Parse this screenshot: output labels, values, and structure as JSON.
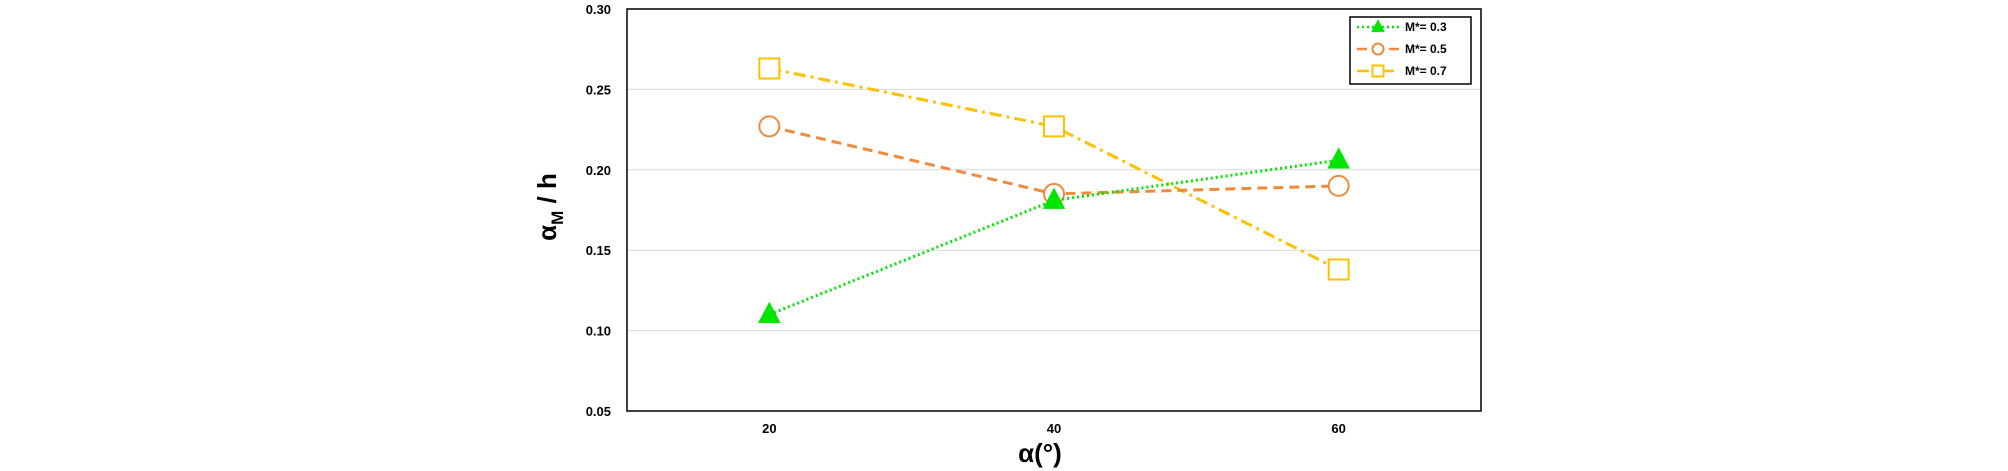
{
  "chart_data": {
    "type": "line",
    "title": "",
    "xlabel": "α(°)",
    "ylabel": {
      "main": "α",
      "subscript": "M",
      "suffix": " / h"
    },
    "x": [
      20,
      40,
      60
    ],
    "x_ticks": [
      "20",
      "40",
      "60"
    ],
    "xlim": [
      10,
      70
    ],
    "ylim": [
      0.05,
      0.3
    ],
    "y_ticks": [
      "0.05",
      "0.10",
      "0.15",
      "0.20",
      "0.25",
      "0.30"
    ],
    "grid": "horizontal",
    "legend_position": "top-right",
    "series": [
      {
        "name": "M*= 0.3",
        "values": [
          0.11,
          0.181,
          0.206
        ],
        "color": "#00e600",
        "marker": "triangle",
        "line_style": "dotted"
      },
      {
        "name": "M*= 0.5",
        "values": [
          0.227,
          0.185,
          0.19
        ],
        "color": "#f08a3c",
        "marker": "circle",
        "line_style": "dashed"
      },
      {
        "name": "M*= 0.7",
        "values": [
          0.263,
          0.227,
          0.138
        ],
        "color": "#ffc000",
        "marker": "square",
        "line_style": "dash-dot"
      }
    ]
  }
}
